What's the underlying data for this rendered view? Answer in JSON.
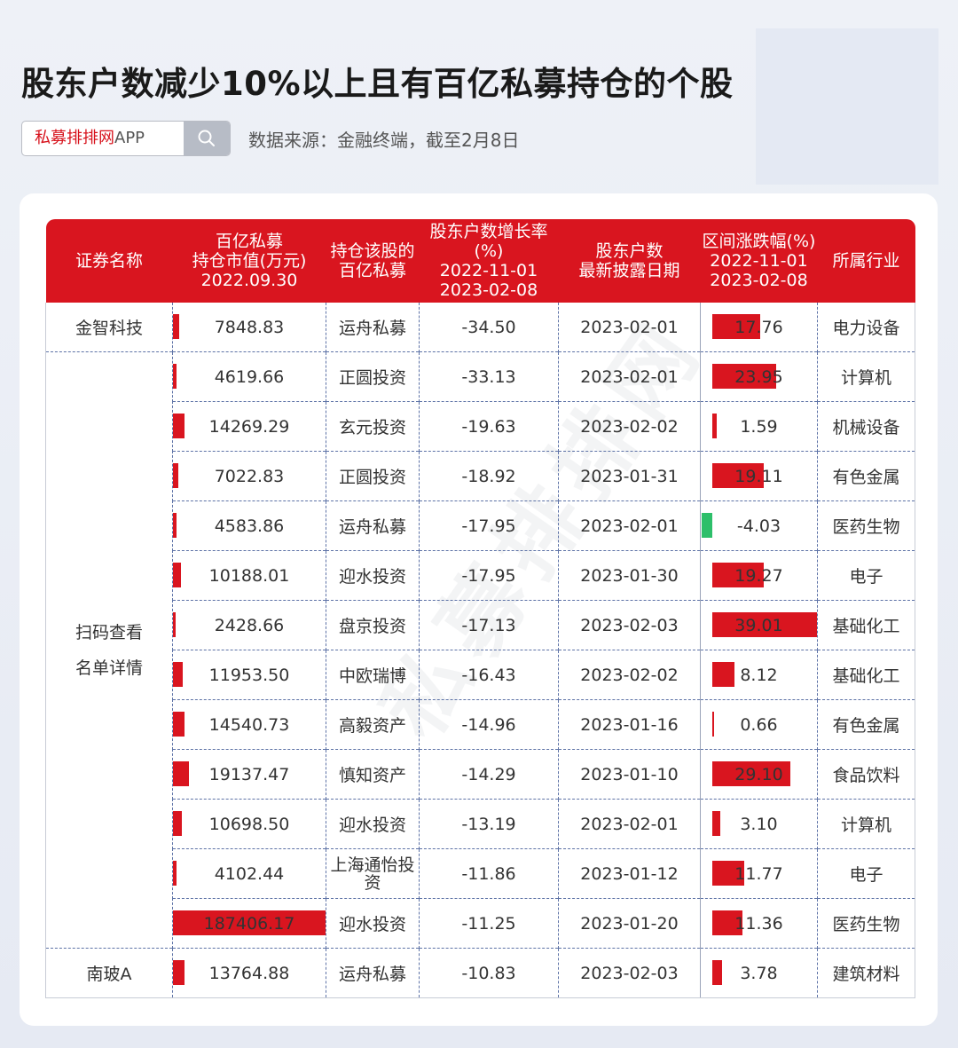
{
  "title": "股东户数减少10%以上且有百亿私募持仓的个股",
  "search": {
    "brand": "私募排排网",
    "suffix": "APP"
  },
  "source_note": "数据来源：金融终端，截至2月8日",
  "table": {
    "headers": {
      "name": "证券名称",
      "mv_1": "百亿私募",
      "mv_2": "持仓市值(万元)",
      "mv_3": "2022.09.30",
      "fund_1": "持仓该股的",
      "fund_2": "百亿私募",
      "growth_1": "股东户数增长率",
      "growth_2": "(%)",
      "growth_3": "2022-11-01",
      "growth_4": "2023-02-08",
      "date_1": "股东户数",
      "date_2": "最新披露日期",
      "chg_1": "区间涨跌幅(%)",
      "chg_2": "2022-11-01",
      "chg_3": "2023-02-08",
      "industry": "所属行业"
    },
    "merged_name_1": "扫码查看",
    "merged_name_2": "名单详情",
    "rows": [
      {
        "name": "金智科技",
        "mv": "7848.83",
        "mv_value": 7848.83,
        "fund": "运舟私募",
        "growth": "-34.50",
        "date": "2023-02-01",
        "chg": "17.76",
        "chg_value": 17.76,
        "industry": "电力设备"
      },
      {
        "name": "",
        "mv": "4619.66",
        "mv_value": 4619.66,
        "fund": "正圆投资",
        "growth": "-33.13",
        "date": "2023-02-01",
        "chg": "23.95",
        "chg_value": 23.95,
        "industry": "计算机"
      },
      {
        "name": "",
        "mv": "14269.29",
        "mv_value": 14269.29,
        "fund": "玄元投资",
        "growth": "-19.63",
        "date": "2023-02-02",
        "chg": "1.59",
        "chg_value": 1.59,
        "industry": "机械设备"
      },
      {
        "name": "",
        "mv": "7022.83",
        "mv_value": 7022.83,
        "fund": "正圆投资",
        "growth": "-18.92",
        "date": "2023-01-31",
        "chg": "19.11",
        "chg_value": 19.11,
        "industry": "有色金属"
      },
      {
        "name": "",
        "mv": "4583.86",
        "mv_value": 4583.86,
        "fund": "运舟私募",
        "growth": "-17.95",
        "date": "2023-02-01",
        "chg": "-4.03",
        "chg_value": -4.03,
        "industry": "医药生物"
      },
      {
        "name": "",
        "mv": "10188.01",
        "mv_value": 10188.01,
        "fund": "迎水投资",
        "growth": "-17.95",
        "date": "2023-01-30",
        "chg": "19.27",
        "chg_value": 19.27,
        "industry": "电子"
      },
      {
        "name": "",
        "mv": "2428.66",
        "mv_value": 2428.66,
        "fund": "盘京投资",
        "growth": "-17.13",
        "date": "2023-02-03",
        "chg": "39.01",
        "chg_value": 39.01,
        "industry": "基础化工"
      },
      {
        "name": "",
        "mv": "11953.50",
        "mv_value": 11953.5,
        "fund": "中欧瑞博",
        "growth": "-16.43",
        "date": "2023-02-02",
        "chg": "8.12",
        "chg_value": 8.12,
        "industry": "基础化工"
      },
      {
        "name": "",
        "mv": "14540.73",
        "mv_value": 14540.73,
        "fund": "高毅资产",
        "growth": "-14.96",
        "date": "2023-01-16",
        "chg": "0.66",
        "chg_value": 0.66,
        "industry": "有色金属"
      },
      {
        "name": "",
        "mv": "19137.47",
        "mv_value": 19137.47,
        "fund": "慎知资产",
        "growth": "-14.29",
        "date": "2023-01-10",
        "chg": "29.10",
        "chg_value": 29.1,
        "industry": "食品饮料"
      },
      {
        "name": "",
        "mv": "10698.50",
        "mv_value": 10698.5,
        "fund": "迎水投资",
        "growth": "-13.19",
        "date": "2023-02-01",
        "chg": "3.10",
        "chg_value": 3.1,
        "industry": "计算机"
      },
      {
        "name": "",
        "mv": "4102.44",
        "mv_value": 4102.44,
        "fund": "上海通怡投资",
        "growth": "-11.86",
        "date": "2023-01-12",
        "chg": "11.77",
        "chg_value": 11.77,
        "industry": "电子"
      },
      {
        "name": "",
        "mv": "187406.17",
        "mv_value": 187406.17,
        "fund": "迎水投资",
        "growth": "-11.25",
        "date": "2023-01-20",
        "chg": "11.36",
        "chg_value": 11.36,
        "industry": "医药生物"
      },
      {
        "name": "南玻A",
        "mv": "13764.88",
        "mv_value": 13764.88,
        "fund": "运舟私募",
        "growth": "-10.83",
        "date": "2023-02-03",
        "chg": "3.78",
        "chg_value": 3.78,
        "industry": "建筑材料"
      }
    ]
  },
  "colors": {
    "header_red": "#d9151f",
    "bar_pos": "#d9151f",
    "bar_neg": "#2dbf6a"
  }
}
